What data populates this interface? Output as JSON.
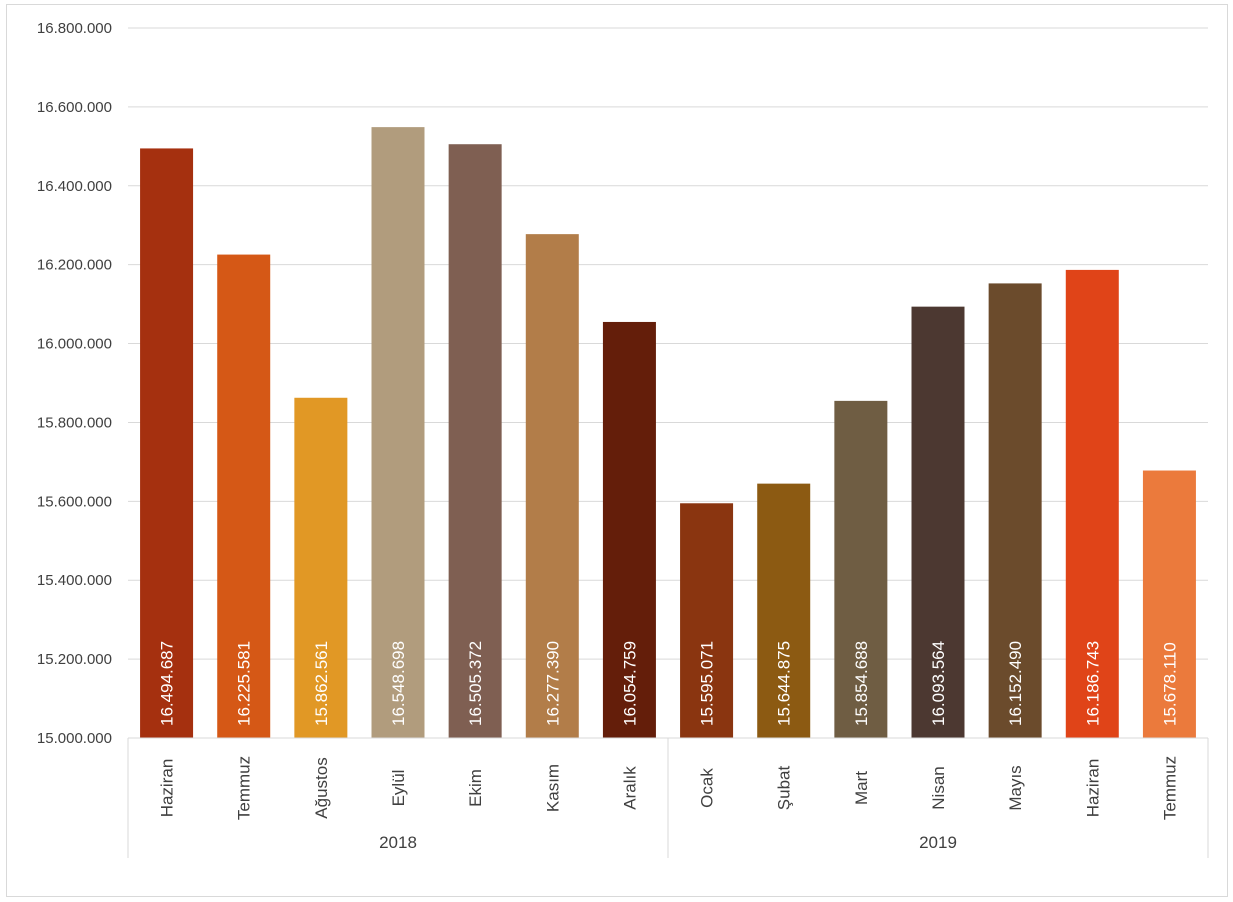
{
  "chart_data": {
    "type": "bar",
    "title": "",
    "xlabel": "",
    "ylabel": "",
    "ylim": [
      15000000,
      16800000
    ],
    "ytick_labels": [
      "15.000.000",
      "15.200.000",
      "15.400.000",
      "15.600.000",
      "15.800.000",
      "16.000.000",
      "16.200.000",
      "16.400.000",
      "16.600.000",
      "16.800.000"
    ],
    "yticks": [
      15000000,
      15200000,
      15400000,
      15600000,
      15800000,
      16000000,
      16200000,
      16400000,
      16600000,
      16800000
    ],
    "grid": true,
    "groups": [
      {
        "label": "2018",
        "count": 7
      },
      {
        "label": "2019",
        "count": 7
      }
    ],
    "categories": [
      "Haziran",
      "Temmuz",
      "Ağustos",
      "Eylül",
      "Ekim",
      "Kasım",
      "Aralık",
      "Ocak",
      "Şubat",
      "Mart",
      "Nisan",
      "Mayıs",
      "Haziran",
      "Temmuz"
    ],
    "values": [
      16494687,
      16225581,
      15862561,
      16548698,
      16505372,
      16277390,
      16054759,
      15595071,
      15644875,
      15854688,
      16093564,
      16152490,
      16186743,
      15678110
    ],
    "value_labels": [
      "16.494.687",
      "16.225.581",
      "15.862.561",
      "16.548.698",
      "16.505.372",
      "16.277.390",
      "16.054.759",
      "15.595.071",
      "15.644.875",
      "15.854.688",
      "16.093.564",
      "16.152.490",
      "16.186.743",
      "15.678.110"
    ],
    "colors": [
      "#A5300F",
      "#D55816",
      "#E19825",
      "#B19C7D",
      "#7F5F52",
      "#B27D49",
      "#641E0A",
      "#8A3510",
      "#8C5A12",
      "#6F5D43",
      "#4C3831",
      "#6B4B2C",
      "#E04418",
      "#EB7A3C"
    ]
  }
}
